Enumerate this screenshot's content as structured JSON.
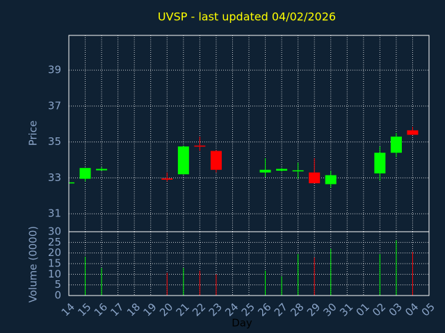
{
  "chart_data": {
    "type": "candlestick",
    "title": "UVSP - last updated 04/02/2026",
    "x_label": "Day",
    "y_label": "Price",
    "y2_label": "Volume (0000)",
    "categories": [
      "14",
      "15",
      "16",
      "17",
      "18",
      "19",
      "20",
      "21",
      "22",
      "23",
      "24",
      "25",
      "26",
      "27",
      "28",
      "29",
      "30",
      "31",
      "01",
      "02",
      "03",
      "04",
      "05"
    ],
    "open": [
      32.7,
      32.95,
      33.42,
      null,
      null,
      null,
      32.97,
      33.2,
      34.8,
      34.5,
      null,
      null,
      33.3,
      33.4,
      33.38,
      33.3,
      32.65,
      null,
      null,
      33.25,
      34.4,
      35.65,
      null
    ],
    "high": [
      32.75,
      33.55,
      33.6,
      null,
      null,
      null,
      33.3,
      34.8,
      35.3,
      34.55,
      null,
      null,
      34.1,
      33.55,
      33.85,
      34.1,
      33.4,
      null,
      null,
      34.75,
      35.5,
      35.85,
      null
    ],
    "low": [
      32.7,
      32.8,
      33.4,
      null,
      null,
      null,
      32.8,
      33.2,
      34.5,
      33.3,
      null,
      null,
      33.05,
      33.35,
      32.95,
      32.7,
      32.45,
      null,
      null,
      32.85,
      34.15,
      35.4,
      null
    ],
    "close": [
      32.75,
      33.55,
      33.5,
      null,
      null,
      null,
      32.9,
      34.75,
      34.75,
      33.45,
      null,
      null,
      33.45,
      33.5,
      33.42,
      32.7,
      33.15,
      null,
      null,
      34.4,
      35.3,
      35.4,
      null
    ],
    "volume": [
      null,
      18.2,
      13,
      null,
      null,
      null,
      10.7,
      13,
      11.7,
      10,
      null,
      null,
      11.7,
      9,
      19.5,
      17.9,
      22,
      null,
      null,
      19.5,
      26,
      20.5,
      null
    ],
    "up_color": "#00ff00",
    "down_color": "#ff0000",
    "ylim": [
      30,
      40.94
    ],
    "yticks": [
      31,
      33,
      35,
      37,
      39
    ],
    "y2lim": [
      0,
      30
    ],
    "y2ticks": [
      0,
      5,
      10,
      15,
      20,
      25,
      30
    ],
    "grid": true
  }
}
